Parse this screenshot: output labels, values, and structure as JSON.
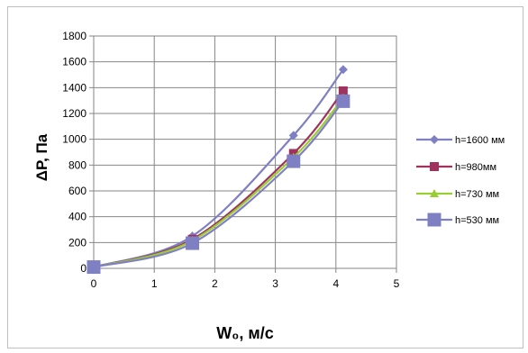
{
  "chart_data": {
    "type": "line",
    "xlabel": "W₀, м/с",
    "ylabel": "ΔP, Па",
    "xlim": [
      0,
      5
    ],
    "ylim": [
      0,
      1800
    ],
    "x_ticks": [
      "0",
      "1",
      "2",
      "3",
      "4",
      "5"
    ],
    "y_ticks": [
      "0",
      "200",
      "400",
      "600",
      "800",
      "1000",
      "1200",
      "1400",
      "1600",
      "1800"
    ],
    "grid": true,
    "legend_position": "right",
    "series": [
      {
        "name": "h=1600 мм",
        "color": "#7F7FC4",
        "marker": "diamond",
        "x": [
          0,
          1.63,
          3.3,
          4.12
        ],
        "y": [
          10,
          250,
          1030,
          1540
        ]
      },
      {
        "name": "h=980мм",
        "color": "#A0335E",
        "marker": "square",
        "x": [
          0,
          1.63,
          3.3,
          4.12
        ],
        "y": [
          10,
          225,
          890,
          1375
        ]
      },
      {
        "name": "h=730 мм",
        "color": "#9ACD32",
        "marker": "triangle",
        "x": [
          0,
          1.63,
          3.3,
          4.12
        ],
        "y": [
          10,
          215,
          860,
          1320
        ]
      },
      {
        "name": "h=530 мм",
        "color": "#7F7FC4",
        "marker": "big-square",
        "x": [
          0,
          1.63,
          3.3,
          4.12
        ],
        "y": [
          10,
          195,
          830,
          1295
        ]
      }
    ]
  }
}
